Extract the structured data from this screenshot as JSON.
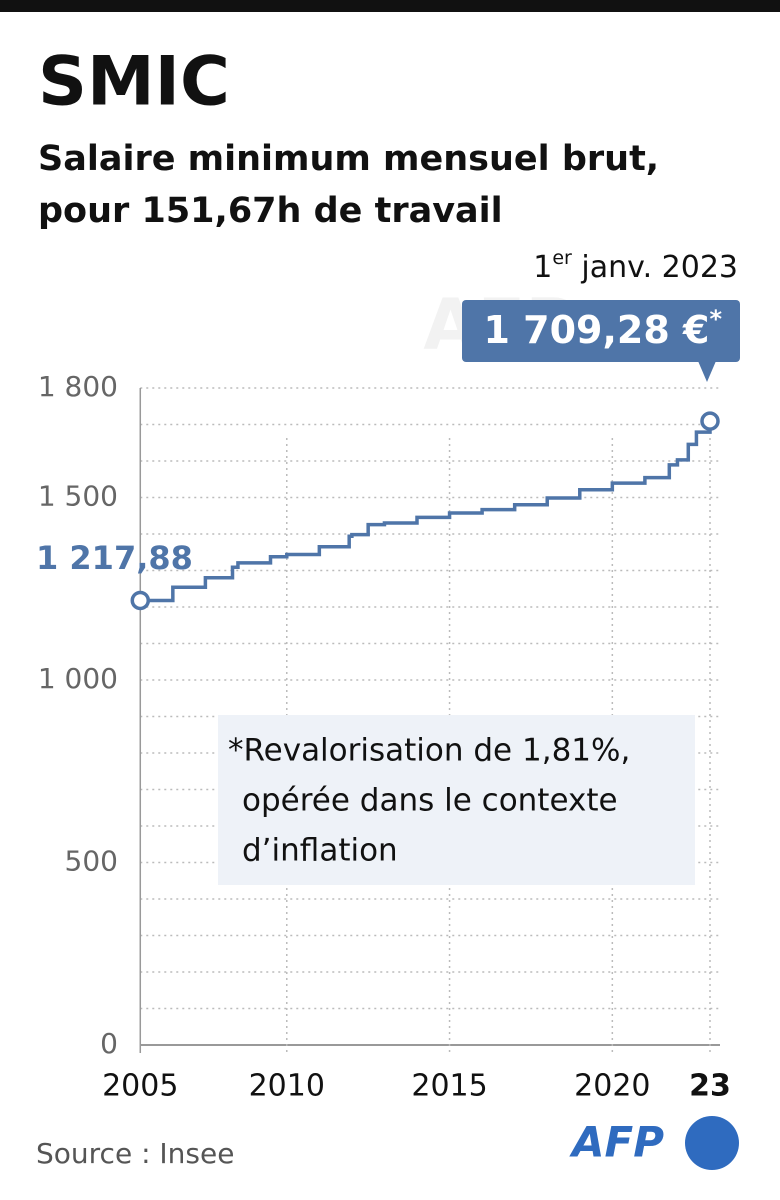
{
  "chart_data": {
    "type": "line",
    "title": "SMIC",
    "subtitle": [
      "Salaire minimum mensuel brut,",
      "pour 151,67h de travail"
    ],
    "x": [
      2005.5,
      2006.5,
      2007.5,
      2008.333,
      2008.5,
      2009.5,
      2010,
      2011,
      2011.917,
      2012,
      2012.5,
      2013,
      2014,
      2015,
      2016,
      2017,
      2018,
      2019,
      2020,
      2021,
      2021.75,
      2022,
      2022.333,
      2022.583,
      2023
    ],
    "series": [
      {
        "name": "SMIC",
        "color": "#4f75a8",
        "values": [
          1217.88,
          1254.28,
          1280.07,
          1308.88,
          1321.02,
          1337.7,
          1343.77,
          1365,
          1393.82,
          1398.37,
          1425.67,
          1430.22,
          1445.38,
          1457.52,
          1466.62,
          1480.27,
          1498.47,
          1521.22,
          1539.42,
          1554.58,
          1589.47,
          1603.12,
          1645.58,
          1678.95,
          1709.28
        ]
      }
    ],
    "step": "post",
    "xlim": [
      2005,
      2023
    ],
    "xticks": [
      2005,
      2010,
      2015,
      2020,
      {
        "value": 2023,
        "label": "23"
      }
    ],
    "ylim": [
      0,
      1800
    ],
    "yticks": [
      0,
      500,
      {
        "value": 1000,
        "label": "1 000"
      },
      {
        "value": 1500,
        "label": "1 500"
      },
      {
        "value": 1800,
        "label": "1 800"
      }
    ],
    "minor_yticks": [
      100,
      200,
      300,
      400,
      600,
      700,
      800,
      900,
      1100,
      1200,
      1300,
      1400,
      1600,
      1700
    ],
    "grid": true,
    "start_label": "1 217,88",
    "end_date": {
      "day": "1",
      "sup": "er",
      "rest": " janv. 2023"
    },
    "end_label": "1 709,28 €",
    "end_mark": "*",
    "note": [
      "*Revalorisation de 1,81%,",
      "opérée dans le contexte",
      "d’inflation"
    ],
    "source": "Source : Insee",
    "logo": "AFP"
  }
}
